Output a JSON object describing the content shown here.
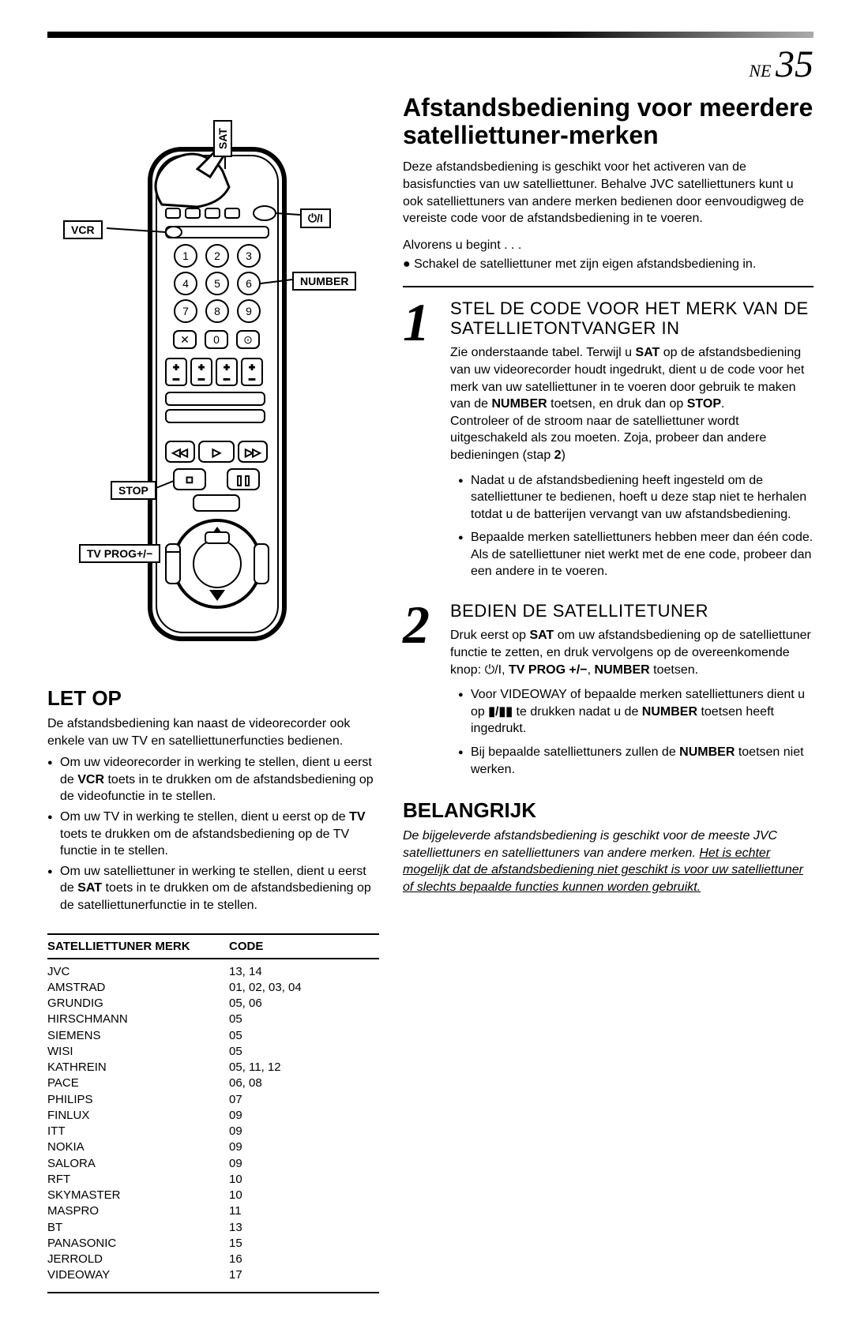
{
  "pageNumber": {
    "prefix": "NE",
    "num": "35"
  },
  "callouts": {
    "sat": "SAT",
    "power": "⏻/I",
    "vcr": "VCR",
    "number": "NUMBER",
    "stop": "STOP",
    "tvprog": "TV PROG+/−"
  },
  "mainTitle": "Afstandsbediening voor meerdere satelliettuner-merken",
  "intro": "Deze afstandsbediening is geschikt voor het activeren van de basisfuncties van uw satelliettuner. Behalve JVC satelliettuners kunt u ook satelliettuners van andere merken bedienen door eenvoudigweg de vereiste code voor de afstandsbediening in te voeren.",
  "before": "Alvorens u begint . . .",
  "beforeBullet": "● Schakel de satelliettuner met zijn eigen afstandsbediening in.",
  "step1": {
    "num": "1",
    "title": "STEL DE CODE VOOR HET MERK VAN DE SATELLIETONTVANGER IN",
    "bullets": [
      "Nadat u de afstandsbediening heeft ingesteld om de satelliettuner te bedienen, hoeft u deze stap niet te herhalen totdat u de batterijen vervangt van uw afstandsbediening.",
      "Bepaalde merken satelliettuners hebben meer dan één code. Als de satelliettuner niet werkt met de ene code, probeer dan een andere in te voeren."
    ]
  },
  "step2": {
    "num": "2",
    "title": "BEDIEN DE SATELLITETUNER",
    "bullets": [
      "Voor VIDEOWAY of bepaalde merken satelliettuners dient u op ▮/▮▮ te drukken nadat u de NUMBER toetsen heeft ingedrukt.",
      "Bij bepaalde satelliettuners zullen de NUMBER toetsen niet werken."
    ]
  },
  "belangrijk": {
    "title": "BELANGRIJK"
  },
  "letop": {
    "title": "LET OP",
    "intro": "De afstandsbediening kan naast de videorecorder ook enkele van uw TV en satelliettunerfuncties bedienen."
  },
  "table": {
    "head": {
      "brand": "SATELLIETTUNER MERK",
      "code": "CODE"
    },
    "rows": [
      {
        "brand": "JVC",
        "code": "13, 14"
      },
      {
        "brand": "AMSTRAD",
        "code": "01, 02, 03, 04"
      },
      {
        "brand": "GRUNDIG",
        "code": "05, 06"
      },
      {
        "brand": "HIRSCHMANN",
        "code": "05"
      },
      {
        "brand": "SIEMENS",
        "code": "05"
      },
      {
        "brand": "WISI",
        "code": "05"
      },
      {
        "brand": "KATHREIN",
        "code": "05, 11, 12"
      },
      {
        "brand": "PACE",
        "code": "06, 08"
      },
      {
        "brand": "PHILIPS",
        "code": "07"
      },
      {
        "brand": "FINLUX",
        "code": "09"
      },
      {
        "brand": "ITT",
        "code": "09"
      },
      {
        "brand": "NOKIA",
        "code": "09"
      },
      {
        "brand": "SALORA",
        "code": "09"
      },
      {
        "brand": "RFT",
        "code": "10"
      },
      {
        "brand": "SKYMASTER",
        "code": "10"
      },
      {
        "brand": "MASPRO",
        "code": "11"
      },
      {
        "brand": "BT",
        "code": "13"
      },
      {
        "brand": "PANASONIC",
        "code": "15"
      },
      {
        "brand": "JERROLD",
        "code": "16"
      },
      {
        "brand": "VIDEOWAY",
        "code": "17"
      }
    ]
  },
  "remoteDigits": [
    "1",
    "2",
    "3",
    "4",
    "5",
    "6",
    "7",
    "8",
    "9",
    "0"
  ]
}
